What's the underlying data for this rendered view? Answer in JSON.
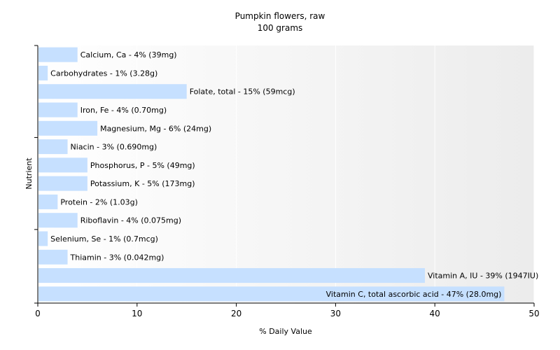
{
  "chart_data": {
    "type": "bar",
    "orientation": "horizontal",
    "title": "Pumpkin flowers, raw",
    "subtitle": "100 grams",
    "xlabel": "% Daily Value",
    "ylabel": "Nutrient",
    "xlim": [
      0,
      50
    ],
    "xticks": [
      0,
      10,
      20,
      30,
      40,
      50
    ],
    "grid": true,
    "bar_color": "#c6e0ff",
    "categories": [
      "Calcium, Ca",
      "Carbohydrates",
      "Folate, total",
      "Iron, Fe",
      "Magnesium, Mg",
      "Niacin",
      "Phosphorus, P",
      "Potassium, K",
      "Protein",
      "Riboflavin",
      "Selenium, Se",
      "Thiamin",
      "Vitamin A, IU",
      "Vitamin C, total ascorbic acid"
    ],
    "values": [
      4,
      1,
      15,
      4,
      6,
      3,
      5,
      5,
      2,
      4,
      1,
      3,
      39,
      47
    ],
    "data_labels": [
      "Calcium, Ca - 4% (39mg)",
      "Carbohydrates - 1% (3.28g)",
      "Folate, total - 15% (59mcg)",
      "Iron, Fe - 4% (0.70mg)",
      "Magnesium, Mg - 6% (24mg)",
      "Niacin - 3% (0.690mg)",
      "Phosphorus, P - 5% (49mg)",
      "Potassium, K - 5% (173mg)",
      "Protein - 2% (1.03g)",
      "Riboflavin - 4% (0.075mg)",
      "Selenium, Se - 1% (0.7mcg)",
      "Thiamin - 3% (0.042mg)",
      "Vitamin A, IU - 39% (1947IU)",
      "Vitamin C, total ascorbic acid - 47% (28.0mg)"
    ]
  }
}
